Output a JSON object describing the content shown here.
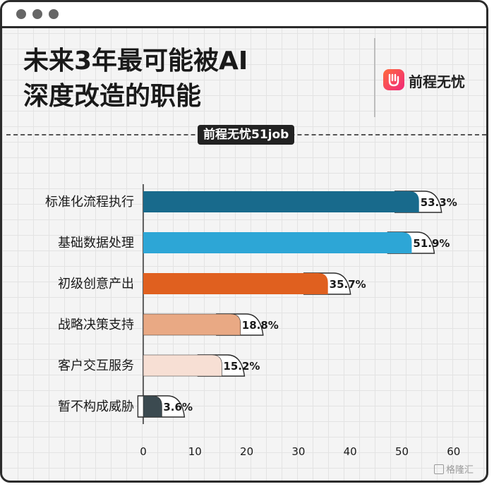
{
  "title_line1": "未来3年最可能被AI",
  "title_line2": "深度改造的职能",
  "logo_text": "前程无忧",
  "source_badge": "前程无忧51job",
  "watermark": "格隆汇",
  "chart_data": {
    "type": "bar",
    "orientation": "horizontal",
    "categories": [
      "标准化流程执行",
      "基础数据处理",
      "初级创意产出",
      "战略决策支持",
      "客户交互服务",
      "暂不构成威胁"
    ],
    "values": [
      53.3,
      51.9,
      35.7,
      18.8,
      15.2,
      3.6
    ],
    "value_labels": [
      "53.3%",
      "51.9%",
      "35.7%",
      "18.8%",
      "15.2%",
      "3.6%"
    ],
    "bar_colors": [
      "#186a8c",
      "#2da6d6",
      "#e0601f",
      "#e9a984",
      "#f7dfd4",
      "#3b4a50"
    ],
    "xlim": [
      0,
      60
    ],
    "x_ticks": [
      0,
      10,
      20,
      30,
      40,
      50,
      60
    ],
    "title": "未来3年最可能被AI深度改造的职能",
    "xlabel": "",
    "ylabel": "",
    "grid": true
  }
}
